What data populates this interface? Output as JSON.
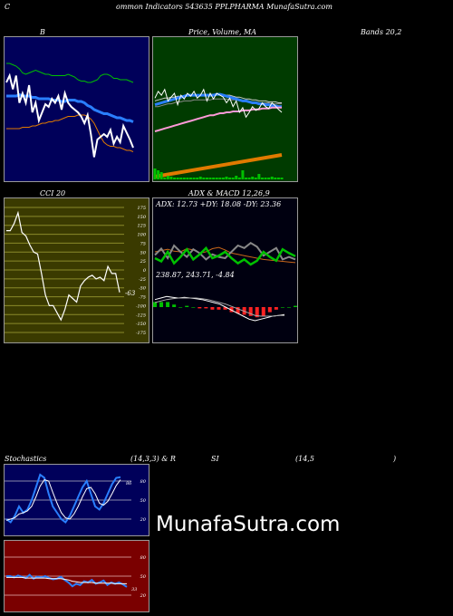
{
  "header": {
    "c": "C",
    "title": "ommon  Indicators 543635 PPLPHARMA MunafaSutra.com"
  },
  "watermark": "MunafaSutra.com",
  "colors": {
    "panel_dark": "#00005a",
    "panel_green": "#003b00",
    "panel_olive": "#3a3a00",
    "panel_black": "#000010",
    "panel_red": "#7a0000",
    "blue": "#2a7fff",
    "green": "#00c000",
    "orange": "#e07a00",
    "white": "#ffffff"
  },
  "chart_data": [
    {
      "type": "line",
      "id": "bands",
      "title": "B",
      "title_right": "Bands 20,2",
      "series": [
        {
          "role": "upper",
          "values": [
            84,
            84,
            83,
            82,
            80,
            77,
            76,
            77,
            78,
            79,
            78,
            77,
            76,
            76,
            75,
            75,
            75,
            75,
            75,
            76,
            75,
            74,
            72,
            71,
            71,
            70,
            70,
            71,
            72,
            75,
            76,
            76,
            75,
            73,
            73,
            72,
            72,
            72,
            71,
            70
          ]
        },
        {
          "role": "middle",
          "values": [
            60,
            60,
            60,
            60,
            61,
            60,
            60,
            60,
            59,
            59,
            58,
            58,
            58,
            58,
            57,
            57,
            57,
            56,
            56,
            57,
            57,
            57,
            56,
            56,
            55,
            53,
            52,
            50,
            49,
            48,
            47,
            47,
            46,
            45,
            44,
            44,
            43,
            42,
            42,
            41
          ]
        },
        {
          "role": "lower",
          "values": [
            36,
            36,
            36,
            36,
            36,
            37,
            37,
            37,
            38,
            38,
            39,
            40,
            40,
            41,
            41,
            42,
            42,
            43,
            44,
            45,
            45,
            45,
            46,
            46,
            46,
            45,
            43,
            40,
            35,
            30,
            26,
            24,
            23,
            23,
            22,
            22,
            21,
            20,
            20,
            19
          ]
        },
        {
          "role": "price",
          "values": [
            70,
            75,
            65,
            75,
            55,
            62,
            55,
            68,
            48,
            55,
            42,
            48,
            54,
            52,
            58,
            55,
            60,
            50,
            62,
            55,
            52,
            50,
            48,
            45,
            40,
            46,
            32,
            15,
            28,
            30,
            32,
            30,
            35,
            25,
            30,
            26,
            38,
            33,
            28,
            22
          ]
        }
      ]
    },
    {
      "type": "line",
      "id": "price_ma",
      "title": "Price,  Volume,  MA",
      "series": [
        {
          "role": "ma_white",
          "values": [
            52,
            53,
            54,
            55,
            55,
            56,
            56,
            57,
            57,
            57,
            58,
            58,
            58,
            58,
            59,
            59,
            59,
            59,
            59,
            59,
            59,
            58,
            58,
            58,
            57,
            56,
            56,
            55,
            54,
            54,
            53,
            53,
            52,
            52,
            52,
            51,
            51,
            51,
            50,
            50
          ]
        },
        {
          "role": "ma_gray",
          "values": [
            46,
            46,
            47,
            48,
            49,
            49,
            50,
            51,
            51,
            52,
            52,
            52,
            53,
            53,
            53,
            53,
            53,
            53,
            54,
            54,
            54,
            54,
            54,
            53,
            53,
            53,
            52,
            52,
            51,
            51,
            51,
            51,
            50,
            50,
            50,
            50,
            49,
            49,
            49,
            49
          ]
        },
        {
          "role": "ma_blue",
          "values": [
            48,
            49,
            50,
            51,
            52,
            53,
            54,
            55,
            56,
            57,
            58,
            58,
            58,
            58,
            58,
            58,
            58,
            58,
            58,
            59,
            59,
            58,
            57,
            56,
            55,
            54,
            53,
            52,
            52,
            51,
            50,
            50,
            49,
            49,
            48,
            48,
            47,
            47,
            46,
            46
          ]
        },
        {
          "role": "ma_pink",
          "values": [
            20,
            21,
            22,
            23,
            24,
            25,
            26,
            27,
            28,
            29,
            30,
            31,
            32,
            33,
            34,
            35,
            36,
            37,
            37,
            38,
            39,
            39,
            40,
            40,
            41,
            41,
            41,
            42,
            42,
            42,
            43,
            43,
            43,
            44,
            44,
            44,
            45,
            45,
            45,
            45
          ]
        },
        {
          "role": "price",
          "values": [
            55,
            62,
            58,
            64,
            52,
            56,
            60,
            48,
            58,
            54,
            60,
            57,
            62,
            55,
            58,
            64,
            52,
            60,
            54,
            60,
            58,
            56,
            50,
            55,
            46,
            52,
            40,
            45,
            35,
            40,
            46,
            42,
            44,
            50,
            46,
            44,
            50,
            47,
            43,
            40
          ]
        }
      ],
      "volume": [
        12,
        10,
        8,
        2,
        4,
        3,
        2,
        2,
        2,
        2,
        2,
        2,
        2,
        2,
        3,
        2,
        2,
        2,
        2,
        2,
        2,
        2,
        3,
        2,
        2,
        4,
        2,
        10,
        2,
        2,
        3,
        2,
        6,
        2,
        2,
        2,
        3,
        2,
        2,
        2
      ]
    },
    {
      "type": "line",
      "id": "cci",
      "title": "CCI 20",
      "ticks": [
        "175",
        "150",
        "125",
        "100",
        "75",
        "50",
        "25",
        "0",
        "-25",
        "-50",
        "-75",
        "-100",
        "-125",
        "-150",
        "-175"
      ],
      "ylim": [
        -175,
        175
      ],
      "last_label": "-63",
      "values": [
        110,
        110,
        130,
        160,
        105,
        95,
        70,
        50,
        45,
        -10,
        -70,
        -100,
        -100,
        -120,
        -140,
        -110,
        -70,
        -80,
        -90,
        -45,
        -30,
        -20,
        -15,
        -25,
        -20,
        -30,
        10,
        -10,
        -10,
        -63
      ]
    },
    {
      "type": "line",
      "id": "adx_macd",
      "title": "ADX  & MACD 12,26,9",
      "adx_label": "ADX: 12.73  +DY: 18.08  -DY: 23.36",
      "macd_label": "238.87,  243.71,  -4.84",
      "adx_series": [
        {
          "role": "adx",
          "values": [
            30,
            32,
            34,
            31,
            30,
            35,
            33,
            28,
            30,
            35,
            37,
            33,
            28,
            26,
            24,
            22,
            20,
            18,
            17,
            16,
            15,
            14,
            13
          ]
        },
        {
          "role": "plus_di",
          "values": [
            25,
            35,
            20,
            40,
            30,
            22,
            34,
            28,
            18,
            26,
            22,
            20,
            30,
            40,
            36,
            44,
            38,
            24,
            30,
            36,
            18,
            22,
            18
          ]
        },
        {
          "role": "minus_di",
          "values": [
            20,
            15,
            30,
            12,
            22,
            34,
            18,
            26,
            36,
            20,
            24,
            30,
            20,
            12,
            18,
            10,
            16,
            30,
            22,
            16,
            34,
            28,
            23
          ]
        }
      ],
      "macd": {
        "macd": [
          10,
          12,
          14,
          13,
          12,
          13,
          12,
          11,
          10,
          8,
          6,
          4,
          0,
          -4,
          -8,
          -12,
          -16,
          -18,
          -16,
          -14,
          -12,
          -11,
          -10
        ],
        "signal": [
          6,
          8,
          10,
          11,
          12,
          12,
          12,
          12,
          11,
          10,
          8,
          6,
          4,
          1,
          -2,
          -5,
          -8,
          -11,
          -12,
          -12,
          -12,
          -11,
          -11
        ],
        "hist": [
          4,
          4,
          4,
          2,
          0,
          1,
          0,
          -1,
          -1,
          -2,
          -2,
          -2,
          -4,
          -5,
          -6,
          -7,
          -8,
          -7,
          -4,
          -2,
          0,
          0,
          1
        ]
      }
    },
    {
      "type": "line",
      "id": "stochastics",
      "title": "Stochastics",
      "params": "(14,3,3) & R",
      "ticks": [
        "80",
        "50",
        "20"
      ],
      "ylim": [
        0,
        100
      ],
      "last_label": "86",
      "series": [
        {
          "role": "k",
          "values": [
            20,
            15,
            25,
            40,
            30,
            35,
            50,
            70,
            90,
            85,
            60,
            40,
            30,
            20,
            15,
            25,
            40,
            55,
            70,
            80,
            60,
            40,
            35,
            45,
            60,
            75,
            85,
            86
          ]
        },
        {
          "role": "d",
          "values": [
            18,
            20,
            22,
            28,
            30,
            33,
            40,
            55,
            72,
            82,
            80,
            62,
            45,
            30,
            22,
            20,
            28,
            40,
            55,
            68,
            70,
            60,
            45,
            42,
            48,
            60,
            73,
            82
          ]
        }
      ]
    },
    {
      "type": "line",
      "id": "rsi",
      "title": "SI",
      "params": "(14,5",
      "close": ")",
      "ticks": [
        "80",
        "50",
        "20"
      ],
      "ylim": [
        0,
        100
      ],
      "last_label": "33",
      "series": [
        {
          "role": "rsi",
          "values": [
            50,
            50,
            48,
            51,
            49,
            47,
            52,
            46,
            49,
            48,
            50,
            47,
            45,
            46,
            49,
            44,
            40,
            34,
            38,
            36,
            42,
            40,
            44,
            38,
            40,
            43,
            36,
            40,
            38,
            40,
            37,
            33
          ]
        },
        {
          "role": "smooth",
          "values": [
            48,
            48,
            48,
            48,
            48,
            47,
            47,
            47,
            47,
            47,
            47,
            46,
            46,
            46,
            46,
            45,
            44,
            42,
            41,
            40,
            40,
            40,
            40,
            39,
            39,
            39,
            39,
            39,
            38,
            38,
            38,
            38
          ]
        }
      ]
    }
  ]
}
